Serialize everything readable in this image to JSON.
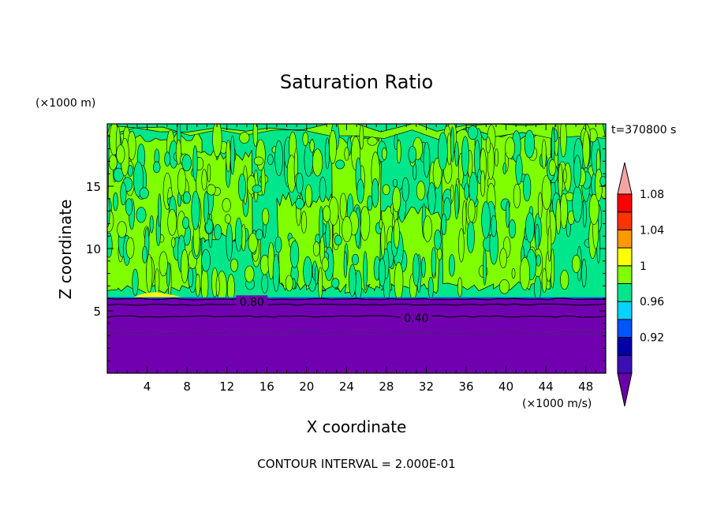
{
  "chart_data": {
    "type": "heatmap",
    "title": "Saturation Ratio",
    "xlabel": "X coordinate",
    "ylabel": "Z coordinate",
    "x_unit": "(×1000 m/s)",
    "y_unit": "(×1000 m)",
    "time_label": "t=370800 s",
    "footer": "CONTOUR INTERVAL = 2.000E-01",
    "xlim": [
      0,
      50
    ],
    "ylim": [
      0,
      20
    ],
    "x_ticks": [
      4,
      8,
      12,
      16,
      20,
      24,
      28,
      32,
      36,
      40,
      44,
      48
    ],
    "y_ticks": [
      5,
      10,
      15
    ],
    "colorbar": {
      "levels": [
        {
          "color": "#6a00a8"
        },
        {
          "color": "#3a0eb8"
        },
        {
          "color": "#0000aa",
          "label": "0.92"
        },
        {
          "color": "#0055ff"
        },
        {
          "color": "#00d4ff",
          "label": "0.96"
        },
        {
          "color": "#00e68a"
        },
        {
          "color": "#7fff00",
          "label": "1"
        },
        {
          "color": "#ffff00"
        },
        {
          "color": "#ff9900",
          "label": "1.04"
        },
        {
          "color": "#ff3300"
        },
        {
          "color": "#ff0000",
          "label": "1.08"
        },
        {
          "color": "#f4a3a3"
        }
      ]
    },
    "regions": {
      "subsaturated_top_z": 6.0,
      "saturated_color": "#00e68a",
      "supersaturated_color": "#7fff00",
      "low_color": "#7000b0",
      "yellow_patch": {
        "x": [
          2.5,
          7.5
        ],
        "z_top": 6.5
      }
    },
    "contour_labels": [
      {
        "text": "0.80",
        "x": 14.5,
        "z": 5.8
      },
      {
        "text": "0.40",
        "x": 31.0,
        "z": 4.5
      }
    ],
    "contour_lines_z": [
      5.95,
      5.5,
      4.55,
      3.25
    ]
  }
}
